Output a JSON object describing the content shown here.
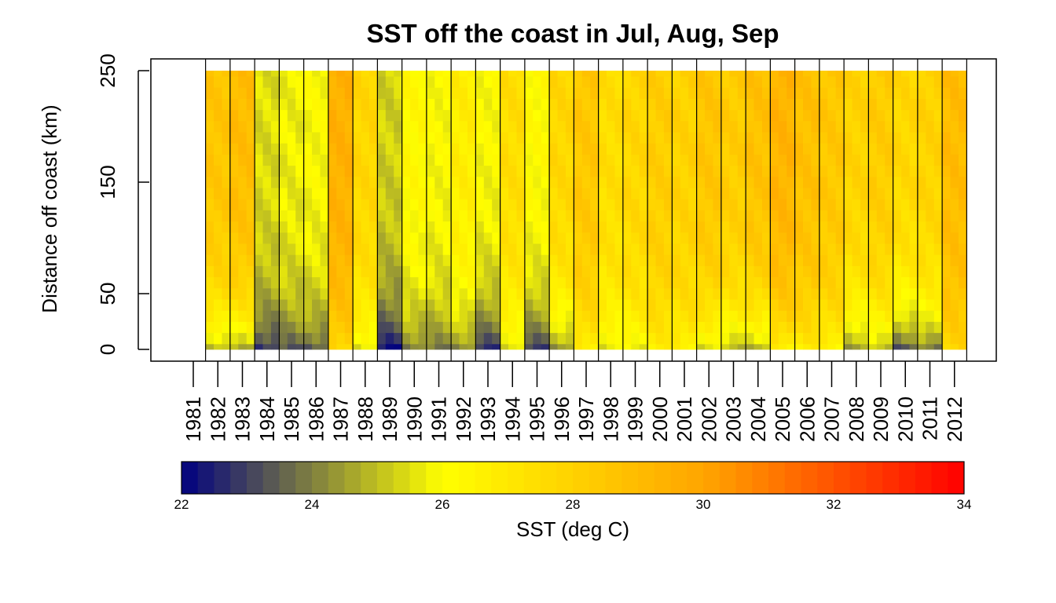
{
  "chart_data": {
    "type": "heatmap",
    "title": "SST off the coast in Jul, Aug, Sep",
    "ylabel": "Distance off coast (km)",
    "xlabel": "",
    "x_tick_labels": [
      "1981",
      "1982",
      "1983",
      "1984",
      "1985",
      "1986",
      "1987",
      "1988",
      "1989",
      "1990",
      "1991",
      "1992",
      "1993",
      "1994",
      "1995",
      "1996",
      "1997",
      "1998",
      "1999",
      "2000",
      "2001",
      "2002",
      "2003",
      "2004",
      "2005",
      "2006",
      "2007",
      "2008",
      "2009",
      "2010",
      "2011",
      "2012"
    ],
    "y_ticks": [
      0,
      50,
      150,
      250
    ],
    "y_tick_labels": [
      "0",
      "50",
      "150",
      "250"
    ],
    "ylim": [
      0,
      250
    ],
    "grid": false,
    "years_with_data": [
      1982,
      1983,
      1984,
      1985,
      1986,
      1987,
      1988,
      1989,
      1990,
      1991,
      1992,
      1993,
      1994,
      1995,
      1996,
      1997,
      1998,
      1999,
      2000,
      2001,
      2002,
      2003,
      2004,
      2005,
      2006,
      2007,
      2008,
      2009,
      2010,
      2011,
      2012
    ],
    "months": [
      "Jul",
      "Aug",
      "Sep"
    ],
    "distance_bins_km": [
      0,
      10,
      20,
      30,
      40,
      50,
      60,
      70,
      80,
      90,
      100,
      110,
      120,
      130,
      140,
      150,
      160,
      170,
      180,
      190,
      200,
      210,
      220,
      230,
      240,
      250
    ],
    "approx_mean_sst_by_year": [
      28.6,
      29.0,
      25.5,
      25.8,
      26.0,
      29.5,
      27.8,
      25.3,
      26.3,
      26.0,
      26.8,
      26.0,
      27.5,
      26.2,
      27.8,
      28.5,
      27.5,
      27.8,
      28.2,
      28.0,
      28.6,
      28.3,
      28.8,
      29.4,
      28.8,
      28.5,
      28.0,
      28.3,
      27.8,
      28.0,
      29.0
    ],
    "nearshore_cool_sst_by_year": [
      25.0,
      24.8,
      22.9,
      23.4,
      23.5,
      27.8,
      25.6,
      22.3,
      24.0,
      23.9,
      24.2,
      22.8,
      25.5,
      23.0,
      24.4,
      26.8,
      25.6,
      25.8,
      26.7,
      26.6,
      25.5,
      25.0,
      24.9,
      26.7,
      26.8,
      26.5,
      24.5,
      25.1,
      23.4,
      24.0,
      27.8
    ],
    "legend": {
      "title": "SST (deg C)",
      "placement": "bottom",
      "min": 22,
      "max": 34,
      "tick_values": [
        22,
        24,
        26,
        28,
        30,
        32,
        34
      ],
      "tick_labels": [
        "22",
        "24",
        "26",
        "28",
        "30",
        "32",
        "34"
      ],
      "colors": [
        "#000080",
        "#FFFF00",
        "#FFA500",
        "#FF0000"
      ]
    }
  }
}
